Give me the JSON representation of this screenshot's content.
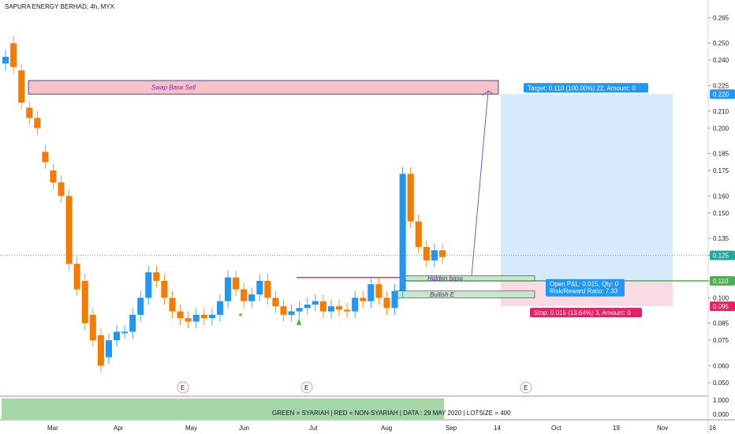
{
  "header": {
    "title": "SAPURA ENERGY BERHAD, 4h, MYX"
  },
  "colors": {
    "up": "#2196f3",
    "down": "#f57c00",
    "zone_fill": "#f4c2c7",
    "zone_border": "#1e2a78",
    "base_fill": "#c8e6c9",
    "target_fill": "#d6eafc",
    "stop_fill": "#fbdbe3",
    "target_label": "#2196f3",
    "stop_label": "#e91e63",
    "price_line": "#4caf50",
    "resistance_line": "#e53935",
    "dotted_line": "#26a69a",
    "arrow": "#7e57c2",
    "footer_fill": "#a5d6a7"
  },
  "chart_data": {
    "type": "candlestick",
    "y_axis": {
      "range": [
        0.043,
        0.268
      ],
      "ticks": [
        "0.265",
        "0.250",
        "0.240",
        "0.225",
        "0.210",
        "0.200",
        "0.185",
        "0.175",
        "0.160",
        "0.150",
        "0.135",
        "0.125",
        "0.110",
        "0.100",
        "0.085",
        "0.075",
        "0.060",
        "0.050"
      ]
    },
    "x_ticks": [
      "Mar",
      "Apr",
      "May",
      "Jun",
      "Jul",
      "Aug",
      "Sep",
      "14",
      "Oct",
      "19",
      "Nov",
      "16"
    ],
    "price_labels": [
      {
        "value": 0.22,
        "text": "0.220",
        "color": "#2196f3"
      },
      {
        "value": 0.125,
        "text": "0.125",
        "color": "#26a69a"
      },
      {
        "value": 0.11,
        "text": "0.110",
        "color": "#4caf50"
      },
      {
        "value": 0.095,
        "text": "0.095",
        "color": "#e91e63"
      }
    ],
    "annotations": {
      "swap_zone": {
        "text": "Swap Base Sell",
        "from": 0.22,
        "to": 0.228
      },
      "hidden_base": {
        "text": "Hidden base",
        "from": 0.11,
        "to": 0.113
      },
      "bullish_e": {
        "text": "Bullish E",
        "from": 0.1,
        "to": 0.104
      },
      "resistance_level": 0.112,
      "current_price": 0.125
    },
    "position": {
      "entry": 0.11,
      "target": 0.22,
      "stop": 0.095,
      "target_label": "Target: 0.110 (100.00%) 22, Amount: 0",
      "stop_label": "Stop: 0.015 (13.64%) 3, Amount: 0",
      "pnl_label": "Open P&L: 0.015, Qty: 0",
      "rr_label": "Risk/Reward Ratio: 7.33"
    },
    "earnings_marker": "E",
    "indicator_pane": {
      "ticks": [
        "1.000",
        "0.000"
      ],
      "note": "GREEN = SYARIAH  |  RED = NON-SYARIAH  |  DATA : 29 MAY 2020  |  LOTSIZE = 400"
    },
    "price_path": [
      [
        0.238,
        0.242
      ],
      [
        0.25,
        0.236
      ],
      [
        0.234,
        0.215
      ],
      [
        0.212,
        0.206
      ],
      [
        0.206,
        0.2
      ],
      [
        0.186,
        0.18
      ],
      [
        0.175,
        0.168
      ],
      [
        0.168,
        0.16
      ],
      [
        0.16,
        0.12
      ],
      [
        0.12,
        0.105
      ],
      [
        0.11,
        0.085
      ],
      [
        0.09,
        0.075
      ],
      [
        0.078,
        0.06
      ],
      [
        0.065,
        0.075
      ],
      [
        0.075,
        0.08
      ],
      [
        0.08,
        0.08
      ],
      [
        0.08,
        0.09
      ],
      [
        0.09,
        0.1
      ],
      [
        0.1,
        0.115
      ],
      [
        0.115,
        0.11
      ],
      [
        0.11,
        0.1
      ],
      [
        0.1,
        0.092
      ],
      [
        0.092,
        0.088
      ],
      [
        0.088,
        0.086
      ],
      [
        0.086,
        0.09
      ],
      [
        0.09,
        0.088
      ],
      [
        0.088,
        0.09
      ],
      [
        0.09,
        0.098
      ],
      [
        0.098,
        0.112
      ],
      [
        0.112,
        0.105
      ],
      [
        0.105,
        0.098
      ],
      [
        0.098,
        0.102
      ],
      [
        0.102,
        0.11
      ],
      [
        0.11,
        0.1
      ],
      [
        0.1,
        0.095
      ],
      [
        0.095,
        0.09
      ],
      [
        0.09,
        0.092
      ],
      [
        0.092,
        0.094
      ],
      [
        0.094,
        0.096
      ],
      [
        0.096,
        0.098
      ],
      [
        0.098,
        0.092
      ],
      [
        0.092,
        0.095
      ],
      [
        0.095,
        0.093
      ],
      [
        0.093,
        0.092
      ],
      [
        0.092,
        0.1
      ],
      [
        0.1,
        0.098
      ],
      [
        0.098,
        0.108
      ],
      [
        0.108,
        0.1
      ],
      [
        0.1,
        0.094
      ],
      [
        0.094,
        0.104
      ],
      [
        0.104,
        0.173
      ],
      [
        0.173,
        0.145
      ],
      [
        0.145,
        0.13
      ],
      [
        0.13,
        0.122
      ],
      [
        0.122,
        0.128
      ],
      [
        0.128,
        0.124
      ]
    ]
  }
}
